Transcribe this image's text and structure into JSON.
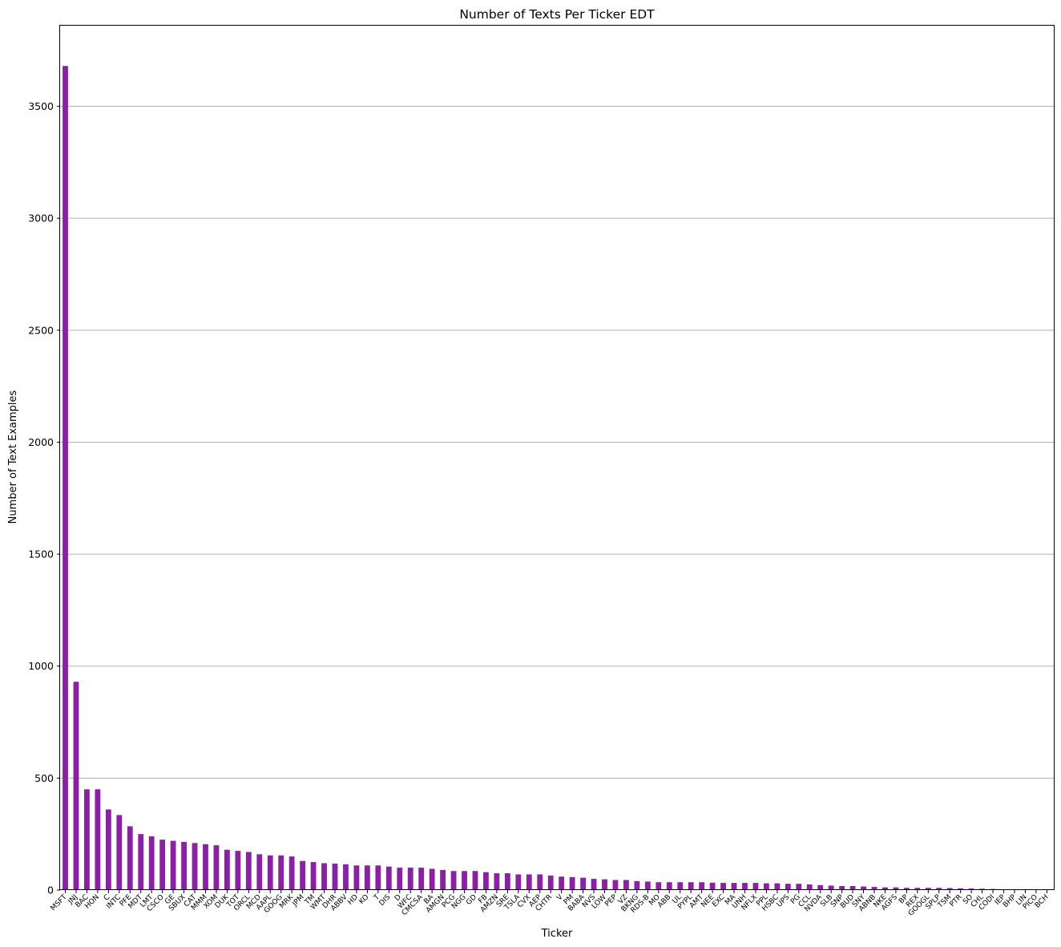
{
  "chart_data": {
    "type": "bar",
    "title": "Number of Texts Per Ticker EDT",
    "xlabel": "Ticker",
    "ylabel": "Number of Text Examples",
    "ylim": [
      0,
      3860
    ],
    "yticks": [
      0,
      500,
      1000,
      1500,
      2000,
      2500,
      3000,
      3500
    ],
    "grid": "y-axis",
    "bar_color": "#8b1fa6",
    "categories": [
      "MSFT",
      "JNJ",
      "BAC",
      "HON",
      "C",
      "INTC",
      "PFE",
      "MDT",
      "LMT",
      "CSCO",
      "GE",
      "SBUX",
      "CAT",
      "MMM",
      "XOM",
      "DUK",
      "TOT",
      "ORCL",
      "MCD",
      "AAPL",
      "GOOG",
      "MRK",
      "JPM",
      "TM",
      "WMT",
      "DHR",
      "ABBV",
      "HD",
      "KO",
      "T",
      "DIS",
      "D",
      "WFC",
      "CMCSA",
      "BA",
      "AMGN",
      "PCG",
      "NGG",
      "GD",
      "FB",
      "AMZN",
      "SRE",
      "TSLA",
      "CVX",
      "AEP",
      "CHTR",
      "V",
      "PM",
      "BABA",
      "NVS",
      "LOW",
      "PEP",
      "VZ",
      "BKNG",
      "RDS-B",
      "MO",
      "ABB",
      "UL",
      "PYPL",
      "AMT",
      "NEE",
      "EXC",
      "MA",
      "UNH",
      "NFLX",
      "PPL",
      "HSBC",
      "UPS",
      "PG",
      "CCL",
      "NVDA",
      "SLB",
      "SNP",
      "BUD",
      "SNY",
      "ABNB",
      "NKE",
      "AGFS",
      "BP",
      "REX",
      "GOOGL",
      "SPLP",
      "TSM",
      "PTR",
      "SO",
      "CHL",
      "CODI",
      "IEP",
      "BHP",
      "LIN",
      "PICO",
      "BCH"
    ],
    "values": [
      3680,
      930,
      450,
      450,
      360,
      335,
      285,
      250,
      240,
      225,
      220,
      215,
      210,
      205,
      200,
      180,
      175,
      170,
      160,
      155,
      155,
      150,
      130,
      125,
      120,
      118,
      115,
      110,
      110,
      110,
      105,
      100,
      100,
      100,
      95,
      90,
      85,
      85,
      85,
      80,
      75,
      75,
      70,
      70,
      70,
      65,
      60,
      58,
      55,
      50,
      48,
      45,
      45,
      40,
      38,
      35,
      35,
      35,
      35,
      35,
      33,
      32,
      32,
      32,
      32,
      30,
      30,
      28,
      28,
      25,
      22,
      20,
      18,
      18,
      16,
      14,
      12,
      12,
      10,
      10,
      10,
      10,
      9,
      8,
      7,
      6,
      5,
      3,
      2,
      2,
      2,
      1
    ]
  }
}
